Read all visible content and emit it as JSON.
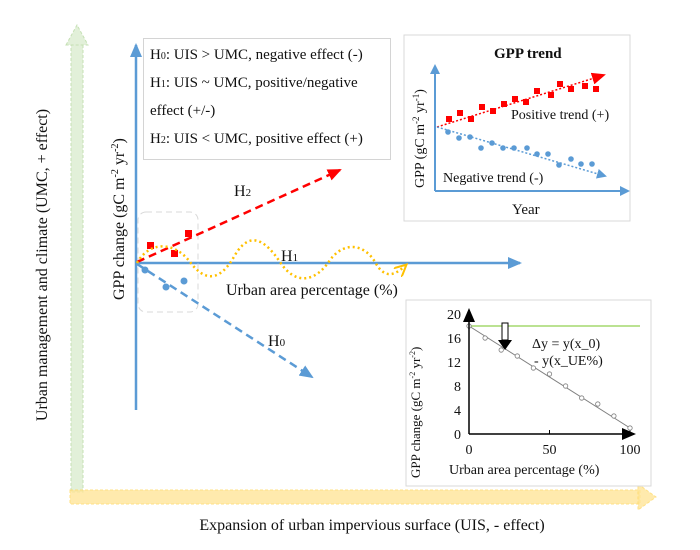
{
  "axes": {
    "y_outer_label": "Urban management and climate (UMC, + effect)",
    "x_outer_label": "Expansion of urban impervious surface (UIS, - effect)",
    "main_y_label": "GPP change (gC m",
    "main_y_sup1": "-2",
    "main_y_mid": " yr",
    "main_y_sup2": "-2",
    "main_y_end": ")",
    "main_x_label": "Urban area percentage (%)"
  },
  "hypotheses": [
    {
      "label": "H",
      "sub": "0",
      "text": ": UIS > UMC, negative effect (-)"
    },
    {
      "label": "H",
      "sub": "1",
      "text": ": UIS ~ UMC, positive/negative"
    },
    {
      "label": "",
      "sub": "",
      "text": "effect (+/-)"
    },
    {
      "label": "H",
      "sub": "2",
      "text": ": UIS < UMC, positive effect (+)"
    }
  ],
  "lines": {
    "h0": {
      "label": "H",
      "sub": "0",
      "color": "#5b9bd5"
    },
    "h1": {
      "label": "H",
      "sub": "1",
      "color": "#ffc000"
    },
    "h2": {
      "label": "H",
      "sub": "2",
      "color": "#ff0000"
    }
  },
  "gpp_trend": {
    "title": "GPP trend",
    "y_label": "GPP (gC m",
    "y_sup1": "-2",
    "y_mid": " yr",
    "y_sup2": "-1",
    "y_end": ")",
    "x_label": "Year",
    "positive_label": "Positive trend (+)",
    "negative_label": "Negative trend (-)"
  },
  "chart_data": {
    "type": "scatter",
    "title": "",
    "xlabel": "Urban area percentage (%)",
    "ylabel": "GPP change (gC m-2 yr-2)",
    "xlim": [
      0,
      100
    ],
    "ylim": [
      0,
      20
    ],
    "x_ticks": [
      "0",
      "50",
      "100"
    ],
    "y_ticks": [
      "0",
      "4",
      "8",
      "12",
      "16",
      "20"
    ],
    "x": [
      0,
      10,
      20,
      30,
      40,
      50,
      60,
      70,
      80,
      90,
      100
    ],
    "y": [
      18,
      16,
      14,
      13,
      11,
      10,
      8,
      6,
      5,
      3,
      1
    ],
    "reference_line_y": 18,
    "annotation_line1": "Δy = y(x_0)",
    "annotation_line2": "- y(x_UE%)",
    "colors": {
      "reference": "#92d050",
      "points": "#7f7f7f",
      "fit": "#7f7f7f"
    }
  }
}
